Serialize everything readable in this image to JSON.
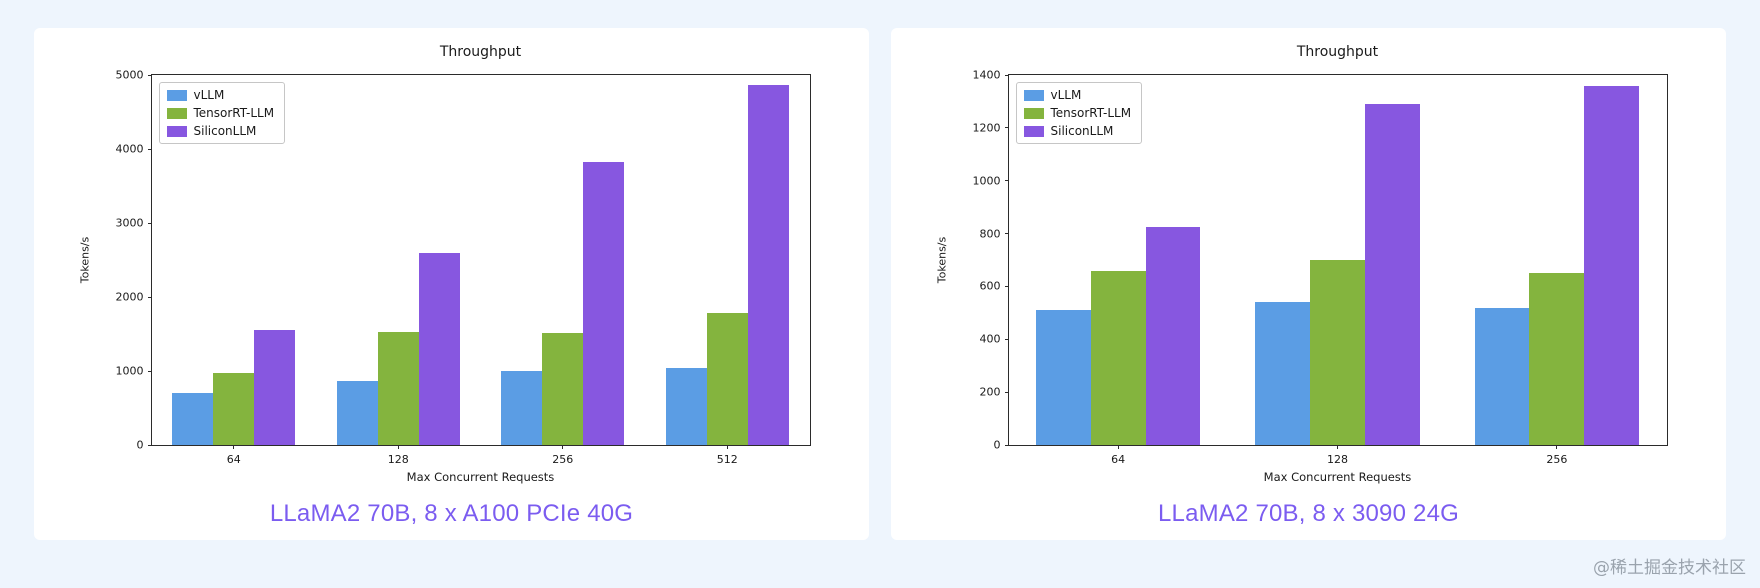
{
  "page": {
    "background": "#eef5fd",
    "panel_background": "#ffffff",
    "caption_color": "#7b5cf0",
    "watermark": "@稀土掘金技术社区",
    "watermark_color": "#9aa3ad"
  },
  "chart_data": [
    {
      "type": "bar",
      "title": "Throughput",
      "xlabel": "Max Concurrent Requests",
      "ylabel": "Tokens/s",
      "categories": [
        "64",
        "128",
        "256",
        "512"
      ],
      "series": [
        {
          "name": "vLLM",
          "color": "#5b9de4",
          "values": [
            700,
            870,
            1000,
            1040
          ]
        },
        {
          "name": "TensorRT-LLM",
          "color": "#84b43e",
          "values": [
            970,
            1530,
            1520,
            1780
          ]
        },
        {
          "name": "SiliconLLM",
          "color": "#8757e0",
          "values": [
            1550,
            2600,
            3820,
            4870
          ]
        }
      ],
      "ylim": [
        0,
        5000
      ],
      "yticks": [
        0,
        1000,
        2000,
        3000,
        4000,
        5000
      ],
      "legend_position": "upper-left",
      "grid": false,
      "caption": "LLaMA2 70B, 8 x A100 PCIe 40G"
    },
    {
      "type": "bar",
      "title": "Throughput",
      "xlabel": "Max Concurrent Requests",
      "ylabel": "Tokens/s",
      "categories": [
        "64",
        "128",
        "256"
      ],
      "series": [
        {
          "name": "vLLM",
          "color": "#5b9de4",
          "values": [
            510,
            540,
            520
          ]
        },
        {
          "name": "TensorRT-LLM",
          "color": "#84b43e",
          "values": [
            660,
            700,
            650
          ]
        },
        {
          "name": "SiliconLLM",
          "color": "#8757e0",
          "values": [
            825,
            1290,
            1360
          ]
        }
      ],
      "ylim": [
        0,
        1400
      ],
      "yticks": [
        0,
        200,
        400,
        600,
        800,
        1000,
        1200,
        1400
      ],
      "legend_position": "upper-left",
      "grid": false,
      "caption": "LLaMA2 70B, 8 x 3090 24G"
    }
  ]
}
